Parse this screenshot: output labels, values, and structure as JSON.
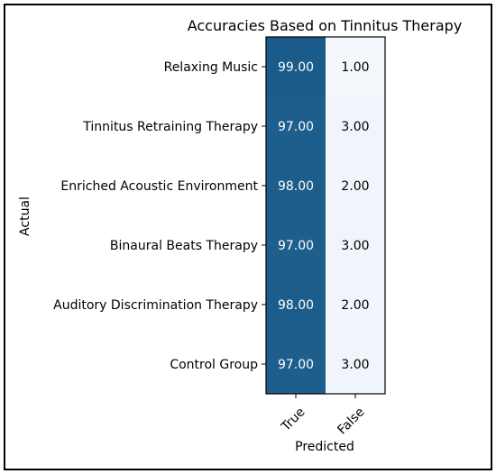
{
  "chart_data": {
    "type": "heatmap",
    "title": "Accuracies Based on Tinnitus Therapy",
    "xlabel": "Predicted",
    "ylabel": "Actual",
    "x_categories": [
      "True",
      "False"
    ],
    "y_categories": [
      "Relaxing Music",
      "Tinnitus Retraining Therapy",
      "Enriched Acoustic Environment",
      "Binaural Beats Therapy",
      "Auditory Discrimination Therapy",
      "Control Group"
    ],
    "values": [
      [
        99.0,
        1.0
      ],
      [
        97.0,
        3.0
      ],
      [
        98.0,
        2.0
      ],
      [
        97.0,
        3.0
      ],
      [
        98.0,
        2.0
      ],
      [
        97.0,
        3.0
      ]
    ],
    "value_labels": [
      [
        "99.00",
        "1.00"
      ],
      [
        "97.00",
        "3.00"
      ],
      [
        "98.00",
        "2.00"
      ],
      [
        "97.00",
        "3.00"
      ],
      [
        "98.00",
        "2.00"
      ],
      [
        "97.00",
        "3.00"
      ]
    ],
    "colors": {
      "high": "#1a5b8a",
      "low": "#f4f8fd",
      "text_on_high": "#ffffff",
      "text_on_low": "#000000"
    },
    "colorscale": "Blues",
    "grid": false
  }
}
